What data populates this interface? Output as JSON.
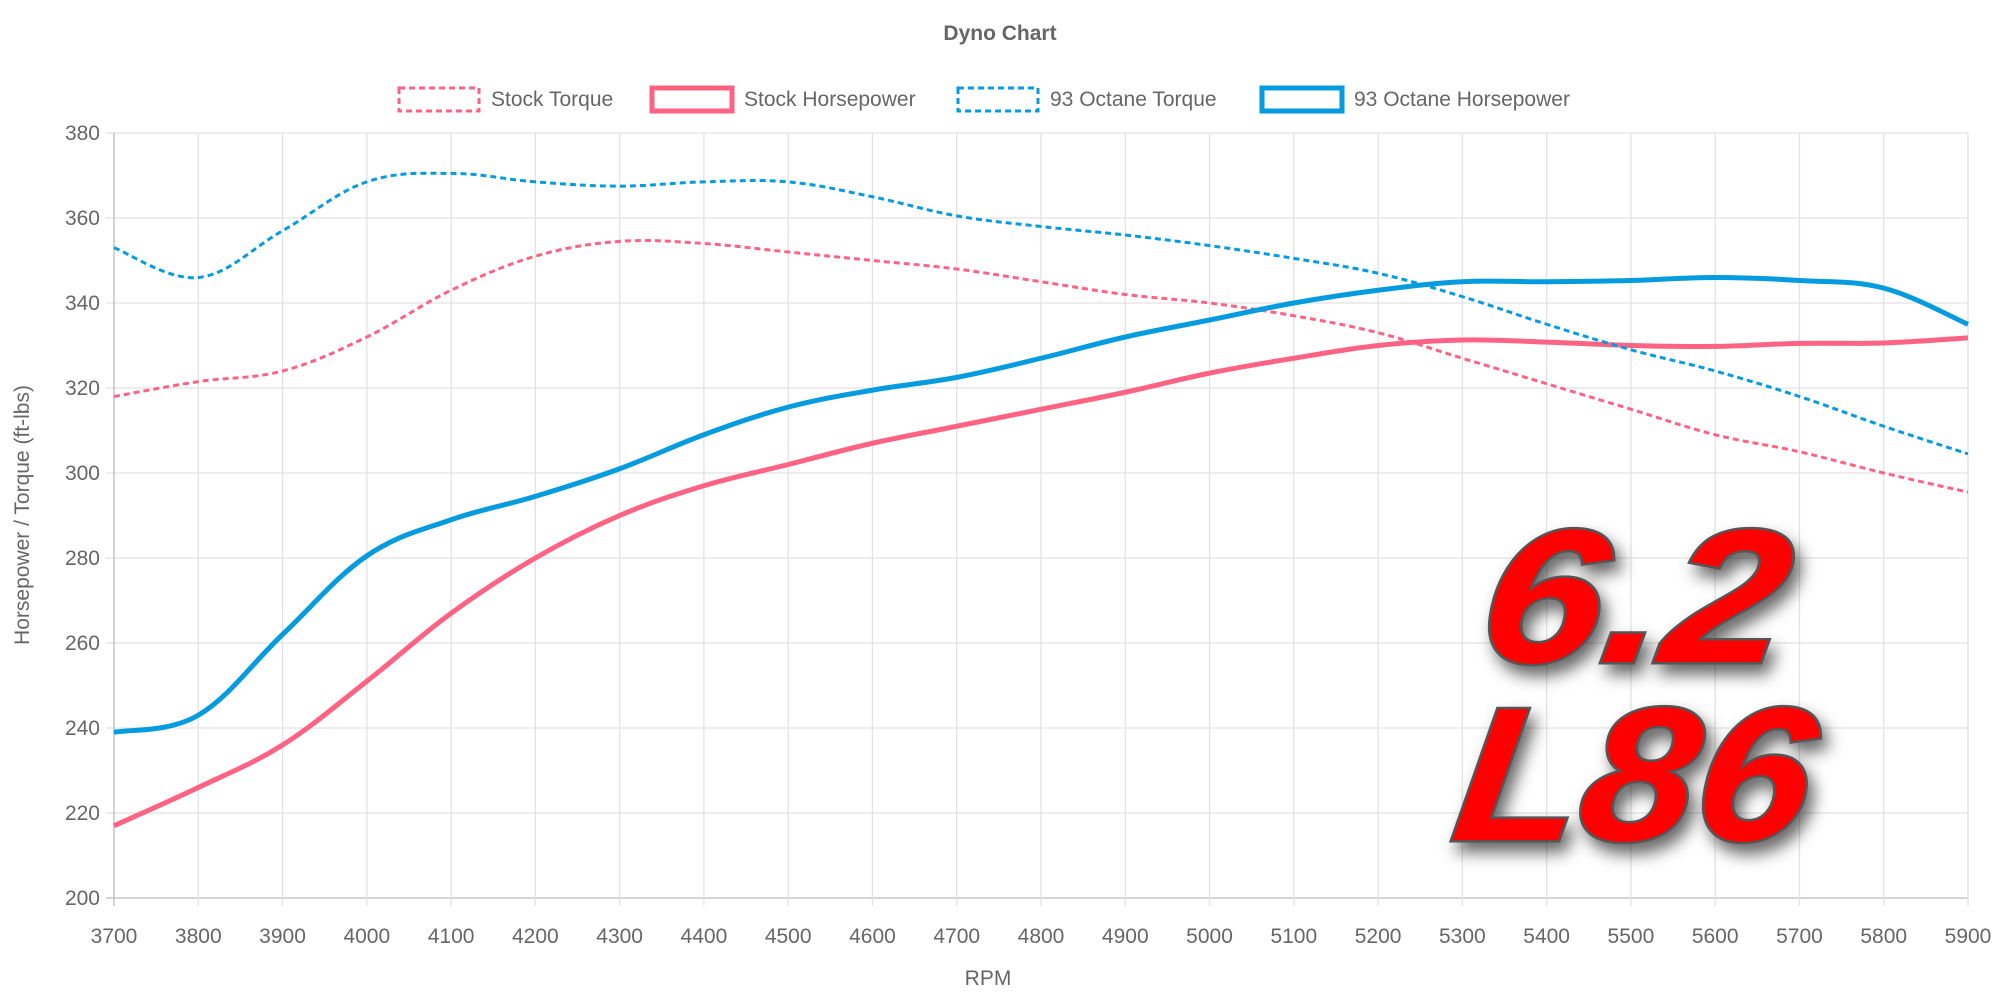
{
  "chart_data": {
    "type": "line",
    "title": "Dyno Chart",
    "xlabel": "RPM",
    "ylabel": "Horsepower / Torque (ft-lbs)",
    "xlim": [
      3700,
      5900
    ],
    "ylim": [
      200,
      380
    ],
    "x_ticks": [
      "3700",
      "3800",
      "3900",
      "4000",
      "4100",
      "4200",
      "4300",
      "4400",
      "4500",
      "4600",
      "4700",
      "4800",
      "4900",
      "5000",
      "5100",
      "5200",
      "5300",
      "5400",
      "5500",
      "5600",
      "5700",
      "5800",
      "5900"
    ],
    "y_ticks": [
      "200",
      "220",
      "240",
      "260",
      "280",
      "300",
      "320",
      "340",
      "360",
      "380"
    ],
    "grid": true,
    "legend_position": "top",
    "x": [
      3700,
      3800,
      3900,
      4000,
      4100,
      4200,
      4300,
      4400,
      4500,
      4600,
      4700,
      4800,
      4900,
      5000,
      5100,
      5200,
      5300,
      5400,
      5500,
      5600,
      5700,
      5800,
      5900
    ],
    "series": [
      {
        "name": "Stock Torque",
        "color": "#ff6384",
        "dashed": true,
        "values": [
          318,
          321.5,
          324,
          332,
          343,
          351,
          354.5,
          354,
          352,
          350,
          348,
          345,
          342,
          340,
          337,
          333,
          327,
          321,
          315,
          309,
          305,
          300,
          295.5
        ]
      },
      {
        "name": "Stock Horsepower",
        "color": "#ff6384",
        "dashed": false,
        "values": [
          217,
          226,
          236,
          251,
          267,
          280,
          290,
          297,
          302,
          307,
          311,
          315,
          319,
          323.5,
          327,
          330,
          331.3,
          330.8,
          330,
          329.8,
          330.5,
          330.6,
          331.8
        ]
      },
      {
        "name": "93 Octane Torque",
        "color": "#059bdf",
        "dashed": true,
        "values": [
          353,
          346,
          357,
          368.5,
          370.5,
          368.5,
          367.5,
          368.5,
          368.5,
          365,
          360.5,
          358,
          356,
          353.5,
          350.5,
          347,
          341.5,
          335,
          329,
          324,
          318,
          311,
          304.5
        ]
      },
      {
        "name": "93 Octane Horsepower",
        "color": "#059bdf",
        "dashed": false,
        "values": [
          239,
          243,
          262,
          280.5,
          289,
          294.5,
          301,
          309,
          315.5,
          319.5,
          322.5,
          327,
          332,
          336,
          340,
          343,
          345,
          345,
          345.3,
          346,
          345.3,
          343.5,
          335
        ]
      }
    ]
  },
  "logo": {
    "line1": "6.2",
    "line2": "L86",
    "color": "#ff0000"
  }
}
